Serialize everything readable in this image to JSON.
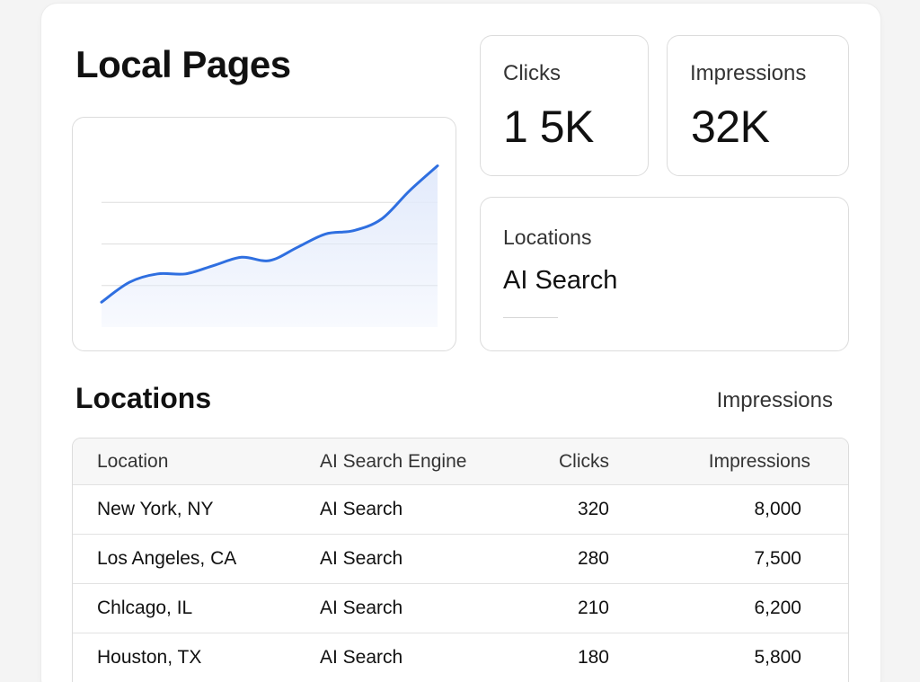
{
  "header": {
    "title": "Local Pages"
  },
  "stats": {
    "clicks": {
      "label": "Clicks",
      "value": "1 5K"
    },
    "impressions": {
      "label": "Impressions",
      "value": "32K"
    }
  },
  "locations_card": {
    "label": "Locations",
    "value": "AI Search"
  },
  "chart_data": {
    "type": "area",
    "title": "",
    "xlabel": "",
    "ylabel": "",
    "grid": true,
    "x": [
      0,
      1,
      2,
      3,
      4,
      5,
      6,
      7,
      8,
      9,
      10,
      11,
      12
    ],
    "values": [
      15,
      27,
      32,
      32,
      37,
      42,
      40,
      48,
      56,
      58,
      65,
      82,
      97
    ],
    "ylim": [
      0,
      100
    ],
    "line_color": "#2f6fe0",
    "fill_color": "#e2eafb"
  },
  "table_section": {
    "title": "Locations",
    "link": "Impressions",
    "columns": [
      "Location",
      "AI Search Engine",
      "Clicks",
      "Impressions"
    ],
    "rows": [
      {
        "location": "New York, NY",
        "engine": "AI Search",
        "clicks": "320",
        "impressions": "8,000"
      },
      {
        "location": "Los Angeles, CA",
        "engine": "AI Search",
        "clicks": "280",
        "impressions": "7,500"
      },
      {
        "location": "Chlcago, IL",
        "engine": "AI Search",
        "clicks": "210",
        "impressions": "6,200"
      },
      {
        "location": "Houston, TX",
        "engine": "AI Search",
        "clicks": "180",
        "impressions": "5,800"
      }
    ]
  }
}
